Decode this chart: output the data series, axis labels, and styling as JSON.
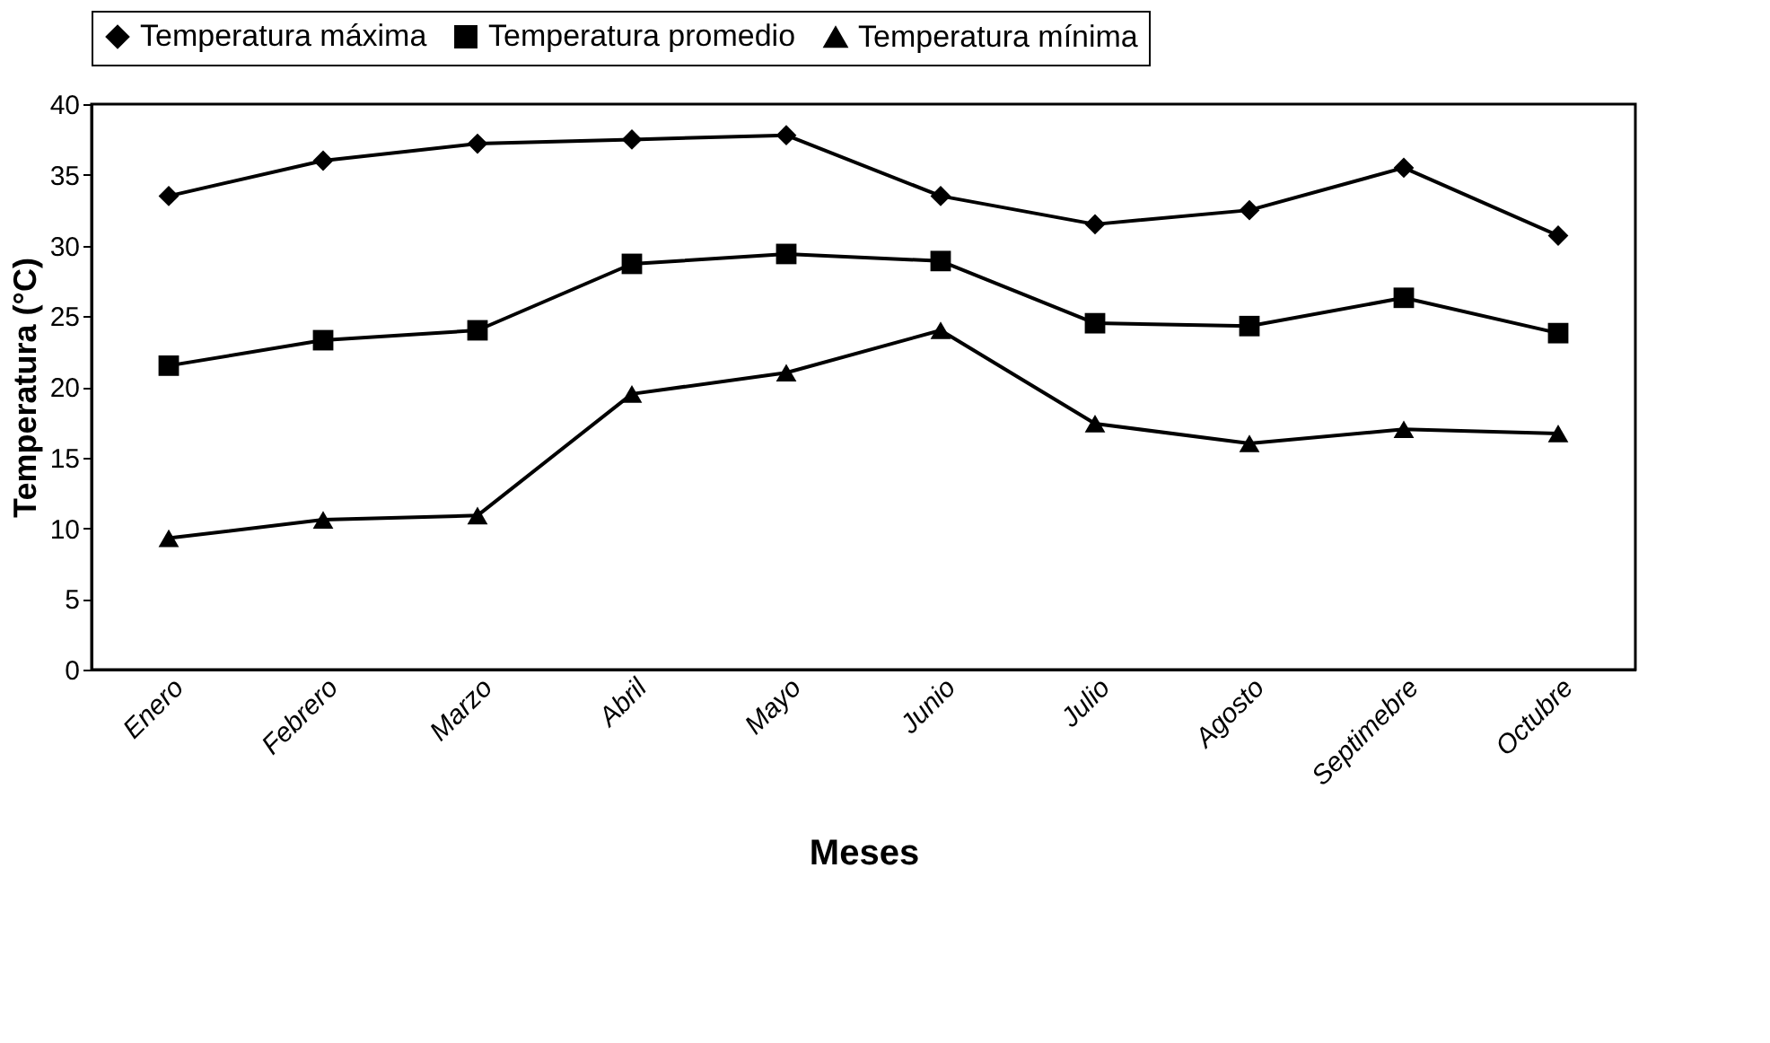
{
  "chart_data": {
    "type": "line",
    "xlabel": "Meses",
    "ylabel": "Temperatura (°C)",
    "categories": [
      "Enero",
      "Febrero",
      "Marzo",
      "Abril",
      "Mayo",
      "Junio",
      "Julio",
      "Agosto",
      "Septimebre",
      "Octubre"
    ],
    "series": [
      {
        "name": "Temperatura máxima",
        "color": "#000000",
        "marker": "diamond",
        "values": [
          33.5,
          36.0,
          37.2,
          37.5,
          37.8,
          33.5,
          31.5,
          32.5,
          35.5,
          30.7
        ]
      },
      {
        "name": "Temperatura promedio",
        "color": "#000000",
        "marker": "square",
        "values": [
          21.5,
          23.3,
          24.0,
          28.7,
          29.4,
          28.9,
          24.5,
          24.3,
          26.3,
          23.8
        ]
      },
      {
        "name": "Temperatura mínima",
        "color": "#000000",
        "marker": "triangle",
        "values": [
          9.3,
          10.6,
          10.9,
          19.5,
          21.0,
          24.0,
          17.4,
          16.0,
          17.0,
          16.7
        ]
      }
    ],
    "ylim": [
      0,
      40
    ],
    "yticks": [
      0,
      5,
      10,
      15,
      20,
      25,
      30,
      35,
      40
    ],
    "grid": false,
    "legend": "top",
    "line_style": "solid"
  }
}
